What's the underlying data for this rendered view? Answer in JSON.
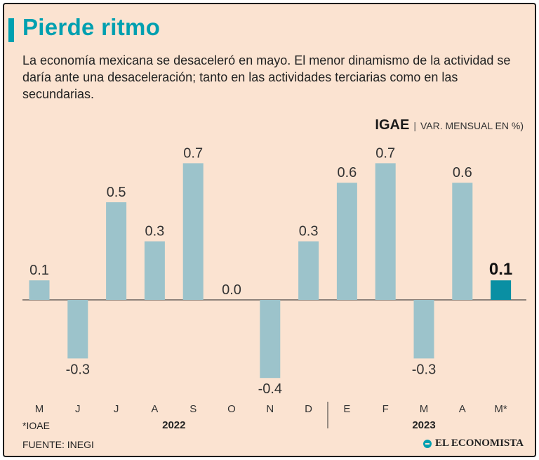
{
  "header": {
    "title": "Pierde ritmo",
    "subtitle": "La economía mexicana se desaceleró en mayo. El menor dinamismo de la actividad se daría ante una desaceleración; tanto en las actividades terciarias como en las secundarias."
  },
  "chart_label": {
    "strong": "IGAE",
    "separator": "|",
    "text": "VAR. MENSUAL EN %)"
  },
  "colors": {
    "bar": "#9cc3cb",
    "highlight": "#0a8fa3",
    "accent": "#00a0b0",
    "background": "#fbe3d1"
  },
  "chart_data": {
    "type": "bar",
    "title": "IGAE",
    "ylabel": "VAR. MENSUAL EN %)",
    "categories": [
      "M",
      "J",
      "J",
      "A",
      "S",
      "O",
      "N",
      "D",
      "E",
      "F",
      "M",
      "A",
      "M*"
    ],
    "values": [
      0.1,
      -0.3,
      0.5,
      0.3,
      0.7,
      0.0,
      -0.4,
      0.3,
      0.6,
      0.7,
      -0.3,
      0.6,
      0.1
    ],
    "value_labels": [
      "0.1",
      "-0.3",
      "0.5",
      "0.3",
      "0.7",
      "0.0",
      "-0.4",
      "0.3",
      "0.6",
      "0.7",
      "-0.3",
      "0.6",
      "0.1"
    ],
    "highlight_index": 12,
    "years": [
      {
        "label": "2022",
        "from": 0,
        "to": 7
      },
      {
        "label": "2023",
        "from": 8,
        "to": 12
      }
    ],
    "ylim": [
      -0.4,
      0.7
    ]
  },
  "footer": {
    "footnote": "*IOAE",
    "source": "FUENTE: INEGI",
    "brand": "EL ECONOMISTA"
  }
}
